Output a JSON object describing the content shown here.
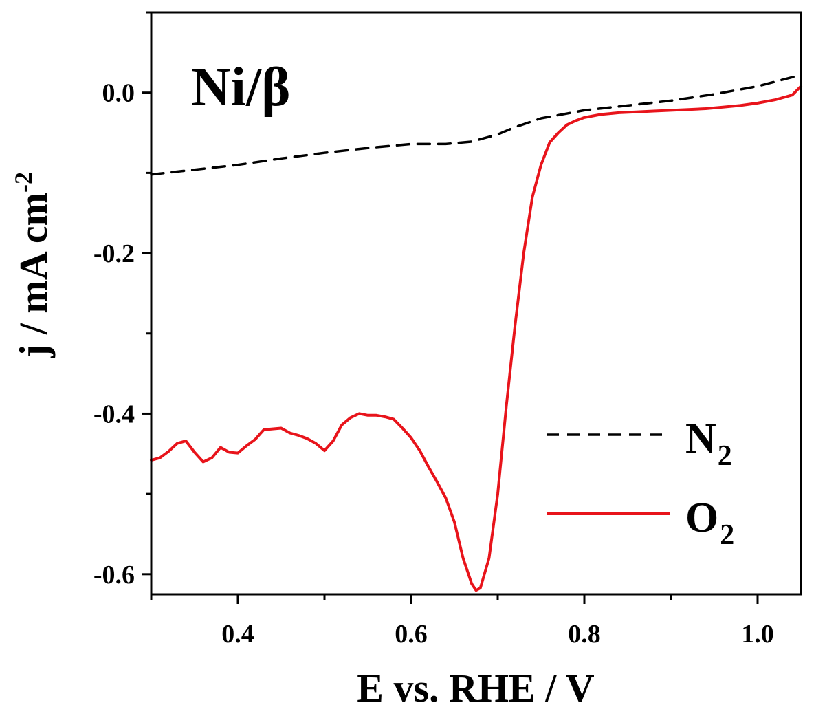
{
  "chart_data": {
    "type": "line",
    "panel_label": "Ni/β",
    "xlabel": "E vs. RHE / V",
    "ylabel": "j / mA cm",
    "ylabel_sup": "-2",
    "xlim": [
      0.3,
      1.05
    ],
    "ylim": [
      -0.625,
      0.1
    ],
    "x_ticks": [
      0.4,
      0.6,
      0.8,
      1.0
    ],
    "x_tick_labels": [
      "0.4",
      "0.6",
      "0.8",
      "1.0"
    ],
    "y_ticks": [
      0.0,
      -0.2,
      -0.4,
      -0.6
    ],
    "y_tick_labels": [
      "0.0",
      "-0.2",
      "-0.4",
      "-0.6"
    ],
    "legend": {
      "placement": "lower-right"
    },
    "series": [
      {
        "name": "N",
        "name_sub": "2",
        "color": "#000000",
        "style": "dashed",
        "x": [
          0.3,
          0.35,
          0.4,
          0.45,
          0.5,
          0.55,
          0.6,
          0.64,
          0.67,
          0.7,
          0.72,
          0.75,
          0.8,
          0.85,
          0.9,
          0.95,
          1.0,
          1.05
        ],
        "y": [
          -0.102,
          -0.096,
          -0.09,
          -0.082,
          -0.075,
          -0.069,
          -0.064,
          -0.064,
          -0.061,
          -0.052,
          -0.043,
          -0.032,
          -0.022,
          -0.016,
          -0.01,
          -0.002,
          0.008,
          0.022
        ]
      },
      {
        "name": "O",
        "name_sub": "2",
        "color": "#e8141b",
        "style": "solid",
        "x": [
          0.3,
          0.31,
          0.32,
          0.33,
          0.34,
          0.35,
          0.36,
          0.37,
          0.38,
          0.39,
          0.4,
          0.41,
          0.42,
          0.43,
          0.44,
          0.45,
          0.46,
          0.47,
          0.48,
          0.49,
          0.5,
          0.51,
          0.52,
          0.53,
          0.54,
          0.55,
          0.56,
          0.57,
          0.58,
          0.59,
          0.6,
          0.61,
          0.62,
          0.63,
          0.64,
          0.65,
          0.66,
          0.67,
          0.675,
          0.68,
          0.69,
          0.7,
          0.71,
          0.72,
          0.73,
          0.74,
          0.75,
          0.76,
          0.77,
          0.78,
          0.79,
          0.8,
          0.81,
          0.82,
          0.84,
          0.86,
          0.88,
          0.9,
          0.92,
          0.94,
          0.96,
          0.98,
          1.0,
          1.02,
          1.04,
          1.05
        ],
        "y": [
          -0.458,
          -0.455,
          -0.447,
          -0.437,
          -0.434,
          -0.448,
          -0.46,
          -0.455,
          -0.442,
          -0.448,
          -0.449,
          -0.44,
          -0.432,
          -0.42,
          -0.419,
          -0.418,
          -0.424,
          -0.427,
          -0.431,
          -0.437,
          -0.446,
          -0.434,
          -0.414,
          -0.405,
          -0.4,
          -0.402,
          -0.402,
          -0.404,
          -0.407,
          -0.418,
          -0.43,
          -0.446,
          -0.466,
          -0.485,
          -0.505,
          -0.535,
          -0.58,
          -0.612,
          -0.62,
          -0.617,
          -0.58,
          -0.5,
          -0.39,
          -0.29,
          -0.2,
          -0.13,
          -0.09,
          -0.062,
          -0.05,
          -0.04,
          -0.035,
          -0.031,
          -0.029,
          -0.027,
          -0.025,
          -0.024,
          -0.023,
          -0.022,
          -0.021,
          -0.02,
          -0.018,
          -0.016,
          -0.013,
          -0.009,
          -0.003,
          0.008
        ]
      }
    ]
  }
}
